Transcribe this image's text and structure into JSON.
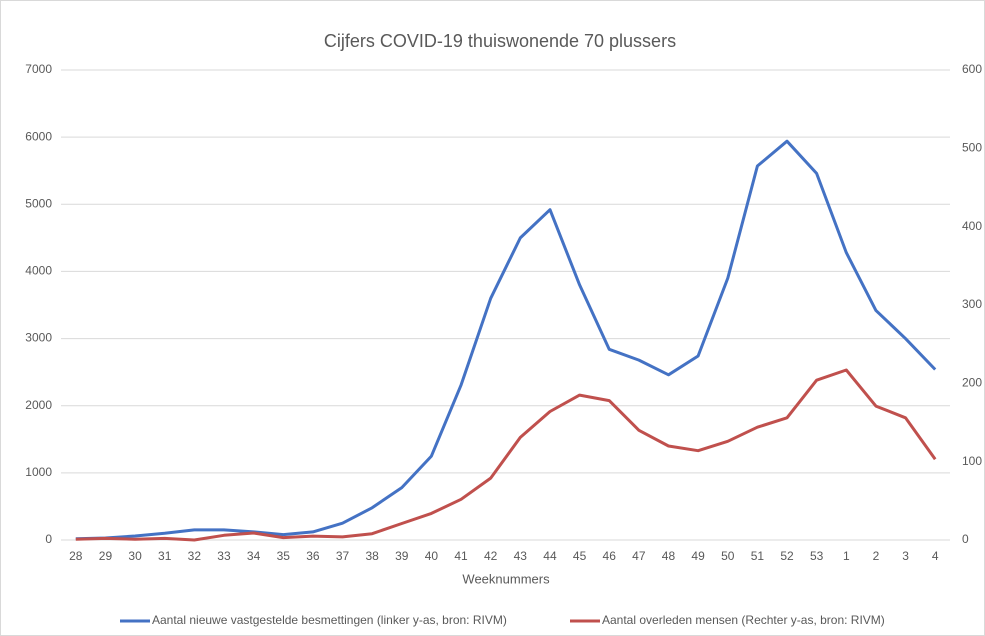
{
  "chart_data": {
    "type": "line",
    "title": "Cijfers COVID-19 thuiswonende 70 plussers",
    "x_label": "Weeknummers",
    "categories": [
      "28",
      "29",
      "30",
      "31",
      "32",
      "33",
      "34",
      "35",
      "36",
      "37",
      "38",
      "39",
      "40",
      "41",
      "42",
      "43",
      "44",
      "45",
      "46",
      "47",
      "48",
      "49",
      "50",
      "51",
      "52",
      "53",
      "1",
      "2",
      "3",
      "4"
    ],
    "series": [
      {
        "name": "Aantal nieuwe vastgestelde besmettingen (linker y-as, bron: RIVM)",
        "color": "#4472c4",
        "axis": "y",
        "values": [
          20,
          30,
          60,
          100,
          150,
          150,
          120,
          80,
          120,
          250,
          480,
          780,
          1250,
          2310,
          3600,
          4500,
          4920,
          3800,
          2840,
          2680,
          2460,
          2740,
          3900,
          5570,
          5940,
          5460,
          4280,
          3420,
          3000,
          2540
        ]
      },
      {
        "name": "Aantal overleden mensen (Rechter y-as, bron: RIVM)",
        "color": "#c0504d",
        "axis": "y2",
        "values": [
          1,
          2,
          1,
          2,
          0,
          6,
          9,
          3,
          5,
          4,
          8,
          21,
          34,
          52,
          79,
          131,
          164,
          185,
          178,
          140,
          120,
          114,
          126,
          144,
          156,
          204,
          217,
          171,
          156,
          103
        ]
      }
    ],
    "ylim": [
      0,
      7000
    ],
    "yticks": [
      0,
      1000,
      2000,
      3000,
      4000,
      5000,
      6000,
      7000
    ],
    "y2lim": [
      0,
      600
    ],
    "y2ticks": [
      0,
      100,
      200,
      300,
      400,
      500,
      600
    ],
    "grid": true,
    "legend": "bottom"
  }
}
